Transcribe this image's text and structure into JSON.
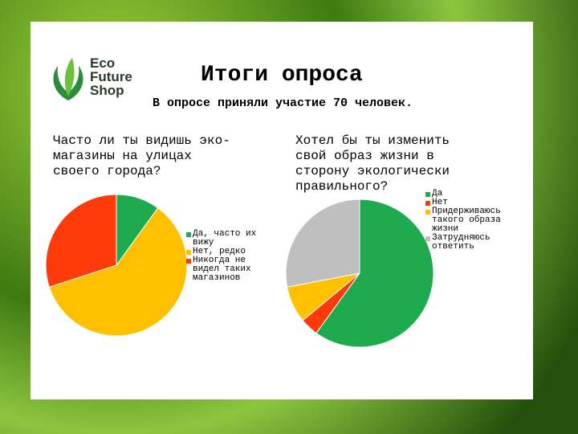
{
  "slide": {
    "title": "Итоги опроса",
    "subtitle": "В опросе приняли участие 70 человек.",
    "logo": [
      "Eco",
      "Future",
      "Shop"
    ]
  },
  "chart_data": [
    {
      "type": "pie",
      "title": "Часто ли ты видишь эко-магазины на улицах своего города?",
      "categories": [
        "Да, часто их вижу",
        "Нет, редко",
        "Никогда не видел таких магазинов"
      ],
      "values": [
        10,
        60,
        30
      ],
      "colors": [
        "#1faa50",
        "#ffc000",
        "#ff3a0a"
      ]
    },
    {
      "type": "pie",
      "title": "Хотел бы ты изменить свой образ жизни в сторону экологически правильного?",
      "categories": [
        "Да",
        "Нет",
        "Придерживаюсь такого образа жизни",
        "Затрудняюсь ответить"
      ],
      "values": [
        60,
        4,
        8,
        28
      ],
      "colors": [
        "#1faa50",
        "#ff3a0a",
        "#ffc000",
        "#bfbfbf"
      ]
    }
  ]
}
